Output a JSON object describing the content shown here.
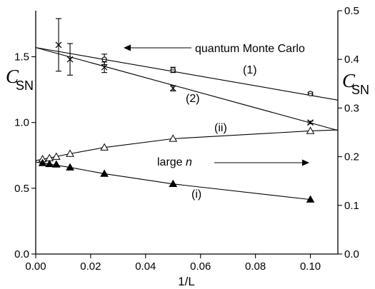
{
  "chart_data": {
    "type": "scatter",
    "x_axis": {
      "label": "1/L",
      "range": [
        0,
        0.11
      ],
      "ticks": [
        0,
        0.02,
        0.04,
        0.06,
        0.08,
        0.1
      ],
      "tick_labels": [
        "0.00",
        "0.02",
        "0.04",
        "0.06",
        "0.08",
        "0.10"
      ]
    },
    "y_axis_left": {
      "label_main": "C",
      "label_sub": "SN",
      "range": [
        0,
        1.85
      ],
      "ticks": [
        0,
        0.5,
        1.0,
        1.5
      ],
      "tick_labels": [
        "0.0",
        "0.5",
        "1.0",
        "1.5"
      ]
    },
    "y_axis_right": {
      "label_main": "C",
      "label_sub": "SN",
      "range": [
        0,
        0.5
      ],
      "ticks": [
        0,
        0.1,
        0.2,
        0.3,
        0.4,
        0.5
      ],
      "tick_labels": [
        "0.0",
        "0.1",
        "0.2",
        "0.3",
        "0.4",
        "0.5"
      ]
    },
    "series": [
      {
        "name": "(1)",
        "marker": "open-circle-cross",
        "axis": "left",
        "points": [
          {
            "x": 0.025,
            "y": 1.48,
            "err": 0.04
          },
          {
            "x": 0.05,
            "y": 1.4,
            "err": 0.02
          },
          {
            "x": 0.1,
            "y": 1.22,
            "err": 0.01
          }
        ],
        "fit": [
          [
            0,
            1.57
          ],
          [
            0.11,
            1.17
          ]
        ]
      },
      {
        "name": "(2)",
        "marker": "x-cross",
        "axis": "left",
        "points": [
          {
            "x": 0.00833,
            "y": 1.59,
            "err": 0.2
          },
          {
            "x": 0.0125,
            "y": 1.48,
            "err": 0.12
          },
          {
            "x": 0.025,
            "y": 1.42,
            "err": 0.04
          },
          {
            "x": 0.05,
            "y": 1.26,
            "err": 0.02
          },
          {
            "x": 0.1,
            "y": 1.0,
            "err": 0.01
          }
        ],
        "fit": [
          [
            0,
            1.57
          ],
          [
            0.11,
            0.94
          ]
        ]
      },
      {
        "name": "(ii)",
        "marker": "open-triangle",
        "axis": "right",
        "points": [
          {
            "x": 0.0025,
            "y": 0.195
          },
          {
            "x": 0.005,
            "y": 0.197
          },
          {
            "x": 0.0075,
            "y": 0.2
          },
          {
            "x": 0.0125,
            "y": 0.206
          },
          {
            "x": 0.025,
            "y": 0.219
          },
          {
            "x": 0.05,
            "y": 0.237
          },
          {
            "x": 0.1,
            "y": 0.253
          }
        ],
        "fit": [
          [
            0,
            0.192
          ],
          [
            0.0125,
            0.206
          ],
          [
            0.025,
            0.219
          ],
          [
            0.05,
            0.237
          ],
          [
            0.1,
            0.253
          ],
          [
            0.11,
            0.255
          ]
        ]
      },
      {
        "name": "(i)",
        "marker": "filled-triangle",
        "axis": "right",
        "points": [
          {
            "x": 0.0025,
            "y": 0.187
          },
          {
            "x": 0.005,
            "y": 0.185
          },
          {
            "x": 0.0075,
            "y": 0.184
          },
          {
            "x": 0.0125,
            "y": 0.178
          },
          {
            "x": 0.025,
            "y": 0.165
          },
          {
            "x": 0.05,
            "y": 0.144
          },
          {
            "x": 0.1,
            "y": 0.112
          }
        ],
        "fit": [
          [
            0,
            0.189
          ],
          [
            0.0125,
            0.178
          ],
          [
            0.025,
            0.165
          ],
          [
            0.05,
            0.144
          ],
          [
            0.1,
            0.112
          ]
        ]
      }
    ],
    "annotations": {
      "qmc": "quantum Monte Carlo",
      "large_prefix": "large ",
      "large_n": "n",
      "label_1": "(1)",
      "label_2": "(2)",
      "label_ii": "(ii)",
      "label_i": "(i)"
    },
    "grid": false,
    "legend": "none"
  }
}
